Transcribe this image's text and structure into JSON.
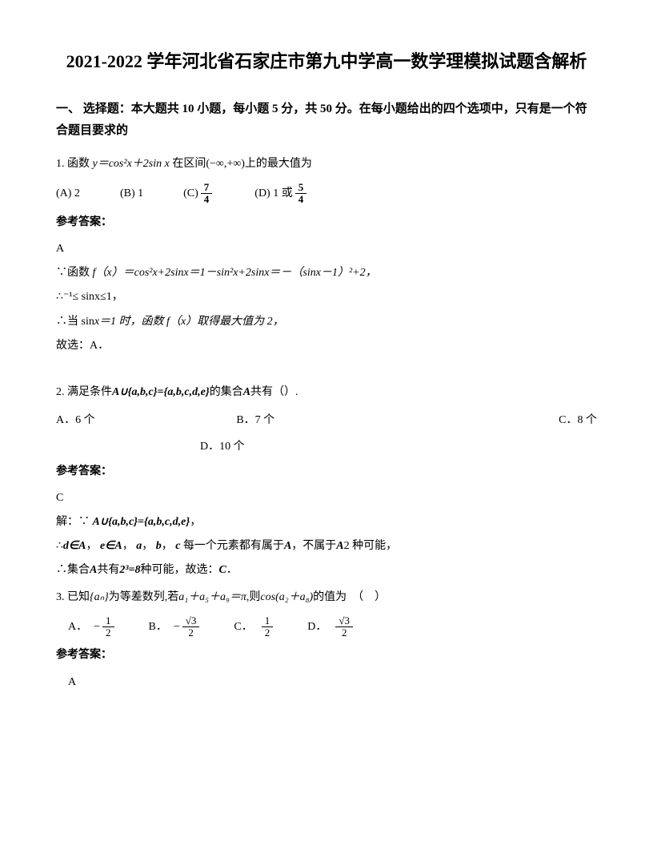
{
  "title": "2021-2022 学年河北省石家庄市第九中学高一数学理模拟试题含解析",
  "section_header": "一、 选择题：本大题共 10 小题，每小题 5 分，共 50 分。在每小题给出的四个选项中，只有是一个符合题目要求的",
  "q1": {
    "text_prefix": "1. 函数 ",
    "text_func": "y＝cos²x＋2sin x",
    "text_suffix": " 在区间(−∞,+∞)上的最大值为",
    "optA": "(A) 2",
    "optB": "(B) 1",
    "optC_label": "(C)",
    "optC_frac_num": "7",
    "optC_frac_den": "4",
    "optD_label": "(D) 1 或",
    "optD_frac_num": "5",
    "optD_frac_den": "4",
    "answer_label": "参考答案：",
    "answer": "A",
    "sol1_prefix": "∵函数 ",
    "sol1_func": "f（x）＝cos²x+2sinx＝1－sin²x+2sinx＝－（sinx－1）²+2，",
    "sol2": "∴⁻¹≤ sinx≤1，",
    "sol3_prefix": "∴当 sin",
    "sol3_mid": "x＝1 时，函数 f（x）取得最大值为 2，",
    "sol4": "故选：A．"
  },
  "q2": {
    "text_prefix": "2. 满足条件",
    "text_set": "A∪{a,b,c}={a,b,c,d,e}",
    "text_suffix1": "的集合",
    "text_A": "A",
    "text_suffix2": "共有（）.",
    "optA": "A．6 个",
    "optB": "B．7 个",
    "optC": "C．8 个",
    "optD": "D．10 个",
    "answer_label": "参考答案：",
    "answer": "C",
    "sol_label": "解：∵",
    "sol_set": "A∪{a,b,c}={a,b,c,d,e}",
    "sol_comma": "，",
    "sol2_prefix": "∴",
    "sol2_d": "d∈A",
    "sol2_c1": "，",
    "sol2_e": "e∈A",
    "sol2_c2": "，",
    "sol2_a": "a",
    "sol2_c3": "，",
    "sol2_b": "b",
    "sol2_c4": "，",
    "sol2_c": "c",
    "sol2_text1": "每一个元素都有属于",
    "sol2_A": "A",
    "sol2_text2": "，不属于",
    "sol2_A2": "A",
    "sol2_text3": "2 种可能，",
    "sol3_prefix": "∴集合",
    "sol3_A": "A",
    "sol3_text1": "共有",
    "sol3_exp": "2³=8",
    "sol3_text2": "种可能，故选：",
    "sol3_C": "C",
    "sol3_period": "．"
  },
  "q3": {
    "text_prefix": "3. 已知",
    "text_seq": "{aₙ}",
    "text_mid1": "为等差数列,若",
    "text_eq": "a₁＋a₅＋a₉＝π",
    "text_mid2": ",则",
    "text_cos": "cos(a₂＋a₈)",
    "text_suffix": "的值为　（　）",
    "optA_label": "A．",
    "optA_neg": "−",
    "optA_num": "1",
    "optA_den": "2",
    "optB_label": "B．",
    "optB_neg": "−",
    "optB_num": "√3",
    "optB_den": "2",
    "optC_label": "C．",
    "optC_num": "1",
    "optC_den": "2",
    "optD_label": "D．",
    "optD_num": "√3",
    "optD_den": "2",
    "answer_label": "参考答案：",
    "answer": "A"
  },
  "colors": {
    "text": "#000000",
    "background": "#ffffff"
  }
}
